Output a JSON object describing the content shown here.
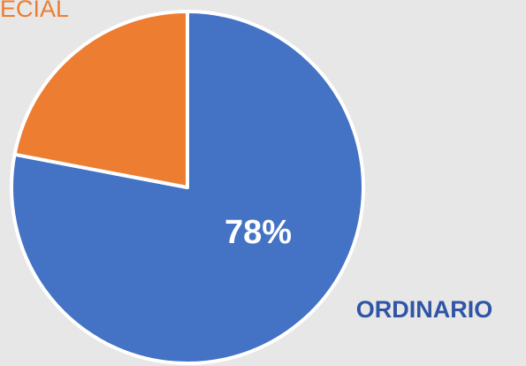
{
  "chart_data": {
    "type": "pie",
    "categories": [
      "ORDINARIO",
      "ECIAL"
    ],
    "values": [
      78,
      22
    ],
    "value_labels": [
      "78%",
      null
    ],
    "colors": [
      "#4472c4",
      "#ed7d31"
    ],
    "label_colors": [
      "#2f55a5",
      "#ed7d31"
    ]
  }
}
